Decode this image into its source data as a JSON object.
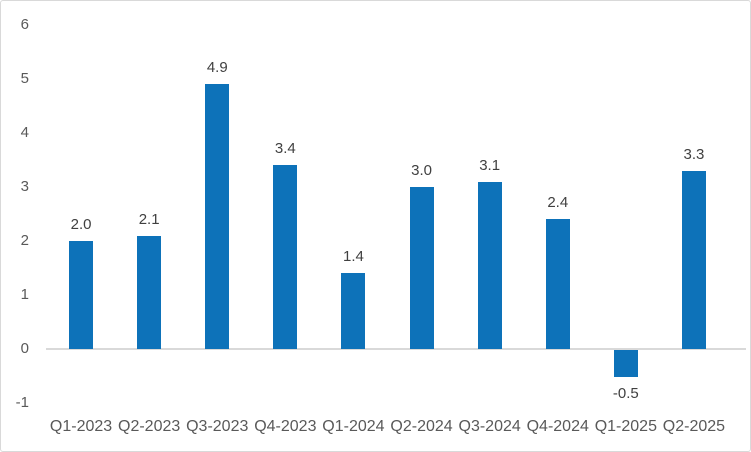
{
  "chart_data": {
    "type": "bar",
    "categories": [
      "Q1-2023",
      "Q2-2023",
      "Q3-2023",
      "Q4-2023",
      "Q1-2024",
      "Q2-2024",
      "Q3-2024",
      "Q4-2024",
      "Q1-2025",
      "Q2-2025"
    ],
    "values": [
      2.0,
      2.1,
      4.9,
      3.4,
      1.4,
      3.0,
      3.1,
      2.4,
      -0.5,
      3.3
    ],
    "data_labels": [
      "2.0",
      "2.1",
      "4.9",
      "3.4",
      "1.4",
      "3.0",
      "3.1",
      "2.4",
      "-0.5",
      "3.3"
    ],
    "title": "",
    "xlabel": "",
    "ylabel": "",
    "ylim": [
      -1,
      6
    ],
    "yticks": [
      6,
      5,
      4,
      3,
      2,
      1,
      0,
      -1
    ],
    "grid": false,
    "legend": "none",
    "colors": {
      "bar": "#0d72b9",
      "axis_line": "#d9d9d9",
      "tick_label": "#595959",
      "data_label": "#404040",
      "border": "#d9d9d9",
      "background": "#ffffff"
    }
  }
}
